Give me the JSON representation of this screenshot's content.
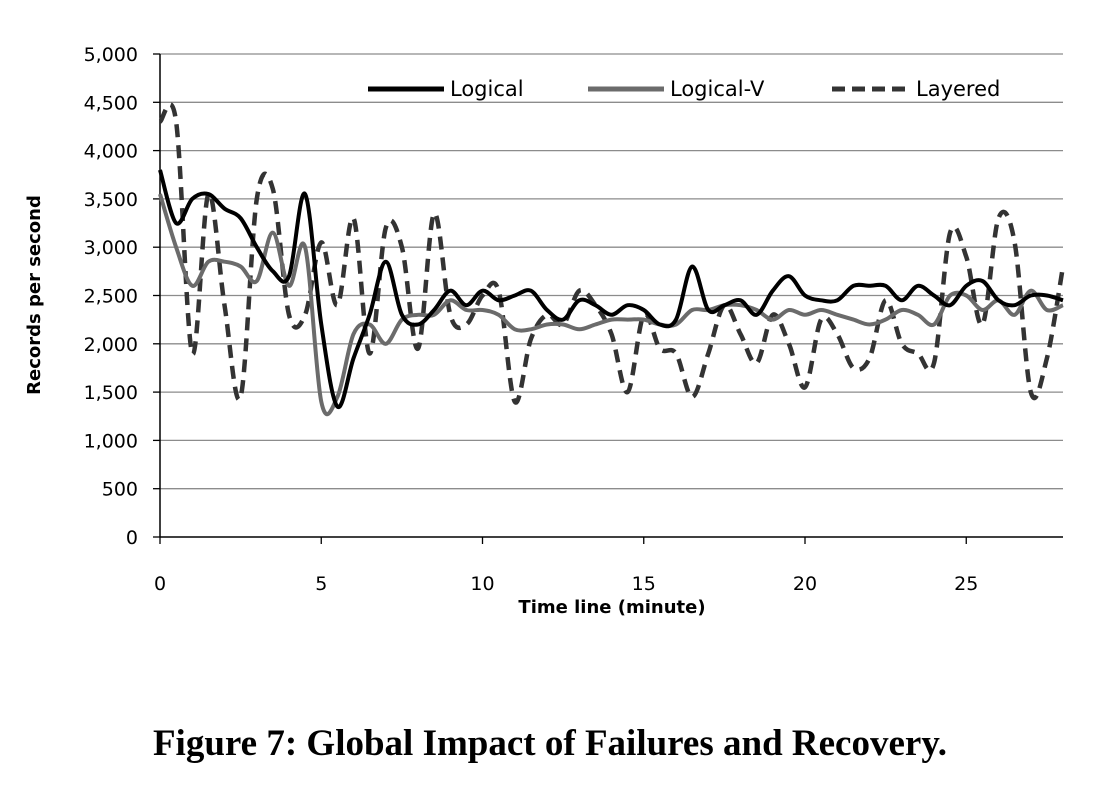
{
  "caption": "Figure 7: Global Impact of Failures and Recovery.",
  "chart_data": {
    "type": "line",
    "title": "",
    "xlabel": "Time line (minute)",
    "ylabel": "Records per second",
    "xlim": [
      0,
      28
    ],
    "ylim": [
      0,
      5000
    ],
    "xticks": [
      0,
      5,
      10,
      15,
      20,
      25
    ],
    "xtick_labels": [
      "0",
      "5",
      "10",
      "15",
      "20",
      "25"
    ],
    "yticks": [
      0,
      500,
      1000,
      1500,
      2000,
      2500,
      3000,
      3500,
      4000,
      4500,
      5000
    ],
    "ytick_labels": [
      "0",
      "500",
      "1,000",
      "1,500",
      "2,000",
      "2,500",
      "3,000",
      "3,500",
      "4,000",
      "4,500",
      "5,000"
    ],
    "grid": "horizontal",
    "legend_position": "top",
    "series": [
      {
        "name": "Logical",
        "color": "#000000",
        "style": "solid",
        "x": [
          0,
          0.5,
          1,
          1.5,
          2,
          2.5,
          3,
          3.5,
          4,
          4.5,
          5,
          5.5,
          6,
          6.5,
          7,
          7.5,
          8,
          8.5,
          9,
          9.5,
          10,
          10.5,
          11,
          11.5,
          12,
          12.5,
          13,
          13.5,
          14,
          14.5,
          15,
          15.5,
          16,
          16.5,
          17,
          17.5,
          18,
          18.5,
          19,
          19.5,
          20,
          20.5,
          21,
          21.5,
          22,
          22.5,
          23,
          23.5,
          24,
          24.5,
          25,
          25.5,
          26,
          26.5,
          27,
          27.5,
          28
        ],
        "y": [
          3800,
          3250,
          3500,
          3550,
          3400,
          3300,
          3000,
          2750,
          2700,
          3550,
          2200,
          1350,
          1850,
          2300,
          2850,
          2300,
          2200,
          2350,
          2550,
          2400,
          2550,
          2450,
          2500,
          2550,
          2350,
          2250,
          2450,
          2400,
          2300,
          2400,
          2350,
          2200,
          2250,
          2800,
          2350,
          2400,
          2450,
          2300,
          2550,
          2700,
          2500,
          2450,
          2450,
          2600,
          2600,
          2600,
          2450,
          2600,
          2500,
          2400,
          2600,
          2650,
          2450,
          2400,
          2500,
          2500,
          2450
        ]
      },
      {
        "name": "Logical-V",
        "color": "#6b6b6b",
        "style": "solid",
        "x": [
          0,
          0.5,
          1,
          1.5,
          2,
          2.5,
          3,
          3.5,
          4,
          4.5,
          5,
          5.5,
          6,
          6.5,
          7,
          7.5,
          8,
          8.5,
          9,
          9.5,
          10,
          10.5,
          11,
          11.5,
          12,
          12.5,
          13,
          13.5,
          14,
          14.5,
          15,
          15.5,
          16,
          16.5,
          17,
          17.5,
          18,
          18.5,
          19,
          19.5,
          20,
          20.5,
          21,
          21.5,
          22,
          22.5,
          23,
          23.5,
          24,
          24.5,
          25,
          25.5,
          26,
          26.5,
          27,
          27.5,
          28
        ],
        "y": [
          3550,
          3000,
          2600,
          2850,
          2850,
          2800,
          2650,
          3150,
          2600,
          3000,
          1400,
          1450,
          2100,
          2200,
          2000,
          2250,
          2300,
          2300,
          2450,
          2350,
          2350,
          2300,
          2150,
          2150,
          2200,
          2200,
          2150,
          2200,
          2250,
          2250,
          2250,
          2200,
          2200,
          2350,
          2350,
          2400,
          2400,
          2350,
          2250,
          2350,
          2300,
          2350,
          2300,
          2250,
          2200,
          2250,
          2350,
          2300,
          2200,
          2500,
          2500,
          2350,
          2450,
          2300,
          2550,
          2350,
          2400
        ]
      },
      {
        "name": "Layered",
        "color": "#333333",
        "style": "dashed",
        "x": [
          0,
          0.5,
          1,
          1.5,
          2,
          2.5,
          3,
          3.5,
          4,
          4.5,
          5,
          5.5,
          6,
          6.5,
          7,
          7.5,
          8,
          8.5,
          9,
          9.5,
          10,
          10.5,
          11,
          11.5,
          12,
          12.5,
          13,
          13.5,
          14,
          14.5,
          15,
          15.5,
          16,
          16.5,
          17,
          17.5,
          18,
          18.5,
          19,
          19.5,
          20,
          20.5,
          21,
          21.5,
          22,
          22.5,
          23,
          23.5,
          24,
          24.5,
          25,
          25.5,
          26,
          26.5,
          27,
          27.5,
          28
        ],
        "y": [
          4300,
          4300,
          1900,
          3550,
          2400,
          1450,
          3500,
          3600,
          2300,
          2300,
          3050,
          2400,
          3300,
          1900,
          3200,
          3000,
          1950,
          3350,
          2300,
          2200,
          2500,
          2550,
          1400,
          2050,
          2300,
          2200,
          2550,
          2400,
          2100,
          1500,
          2300,
          1950,
          1900,
          1450,
          1900,
          2400,
          2100,
          1800,
          2300,
          2000,
          1550,
          2250,
          2100,
          1750,
          1850,
          2450,
          2000,
          1900,
          1800,
          3150,
          2900,
          2200,
          3300,
          3050,
          1500,
          1850,
          2800
        ]
      }
    ]
  }
}
